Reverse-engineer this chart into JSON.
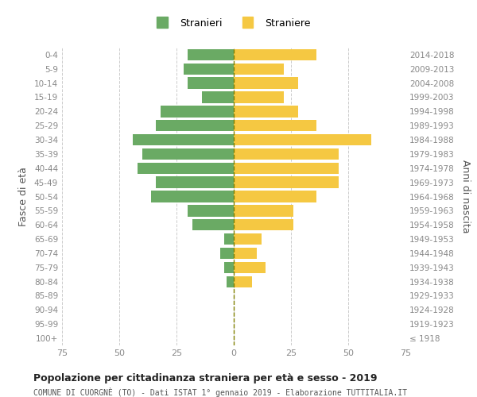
{
  "age_groups": [
    "100+",
    "95-99",
    "90-94",
    "85-89",
    "80-84",
    "75-79",
    "70-74",
    "65-69",
    "60-64",
    "55-59",
    "50-54",
    "45-49",
    "40-44",
    "35-39",
    "30-34",
    "25-29",
    "20-24",
    "15-19",
    "10-14",
    "5-9",
    "0-4"
  ],
  "birth_years": [
    "≤ 1918",
    "1919-1923",
    "1924-1928",
    "1929-1933",
    "1934-1938",
    "1939-1943",
    "1944-1948",
    "1949-1953",
    "1954-1958",
    "1959-1963",
    "1964-1968",
    "1969-1973",
    "1974-1978",
    "1979-1983",
    "1984-1988",
    "1989-1993",
    "1994-1998",
    "1999-2003",
    "2004-2008",
    "2009-2013",
    "2014-2018"
  ],
  "males": [
    0,
    0,
    0,
    0,
    3,
    4,
    6,
    4,
    18,
    20,
    36,
    34,
    42,
    40,
    44,
    34,
    32,
    14,
    20,
    22,
    20
  ],
  "females": [
    0,
    0,
    0,
    0,
    8,
    14,
    10,
    12,
    26,
    26,
    36,
    46,
    46,
    46,
    60,
    36,
    28,
    22,
    28,
    22,
    36
  ],
  "male_color": "#6aaa64",
  "female_color": "#f5c842",
  "xlim": 75,
  "title": "Popolazione per cittadinanza straniera per età e sesso - 2019",
  "subtitle": "COMUNE DI CUORGNÈ (TO) - Dati ISTAT 1° gennaio 2019 - Elaborazione TUTTITALIA.IT",
  "ylabel_left": "Fasce di età",
  "ylabel_right": "Anni di nascita",
  "legend_male": "Stranieri",
  "legend_female": "Straniere",
  "background_color": "#ffffff",
  "grid_color": "#cccccc",
  "tick_color": "#888888",
  "bar_height": 0.8
}
